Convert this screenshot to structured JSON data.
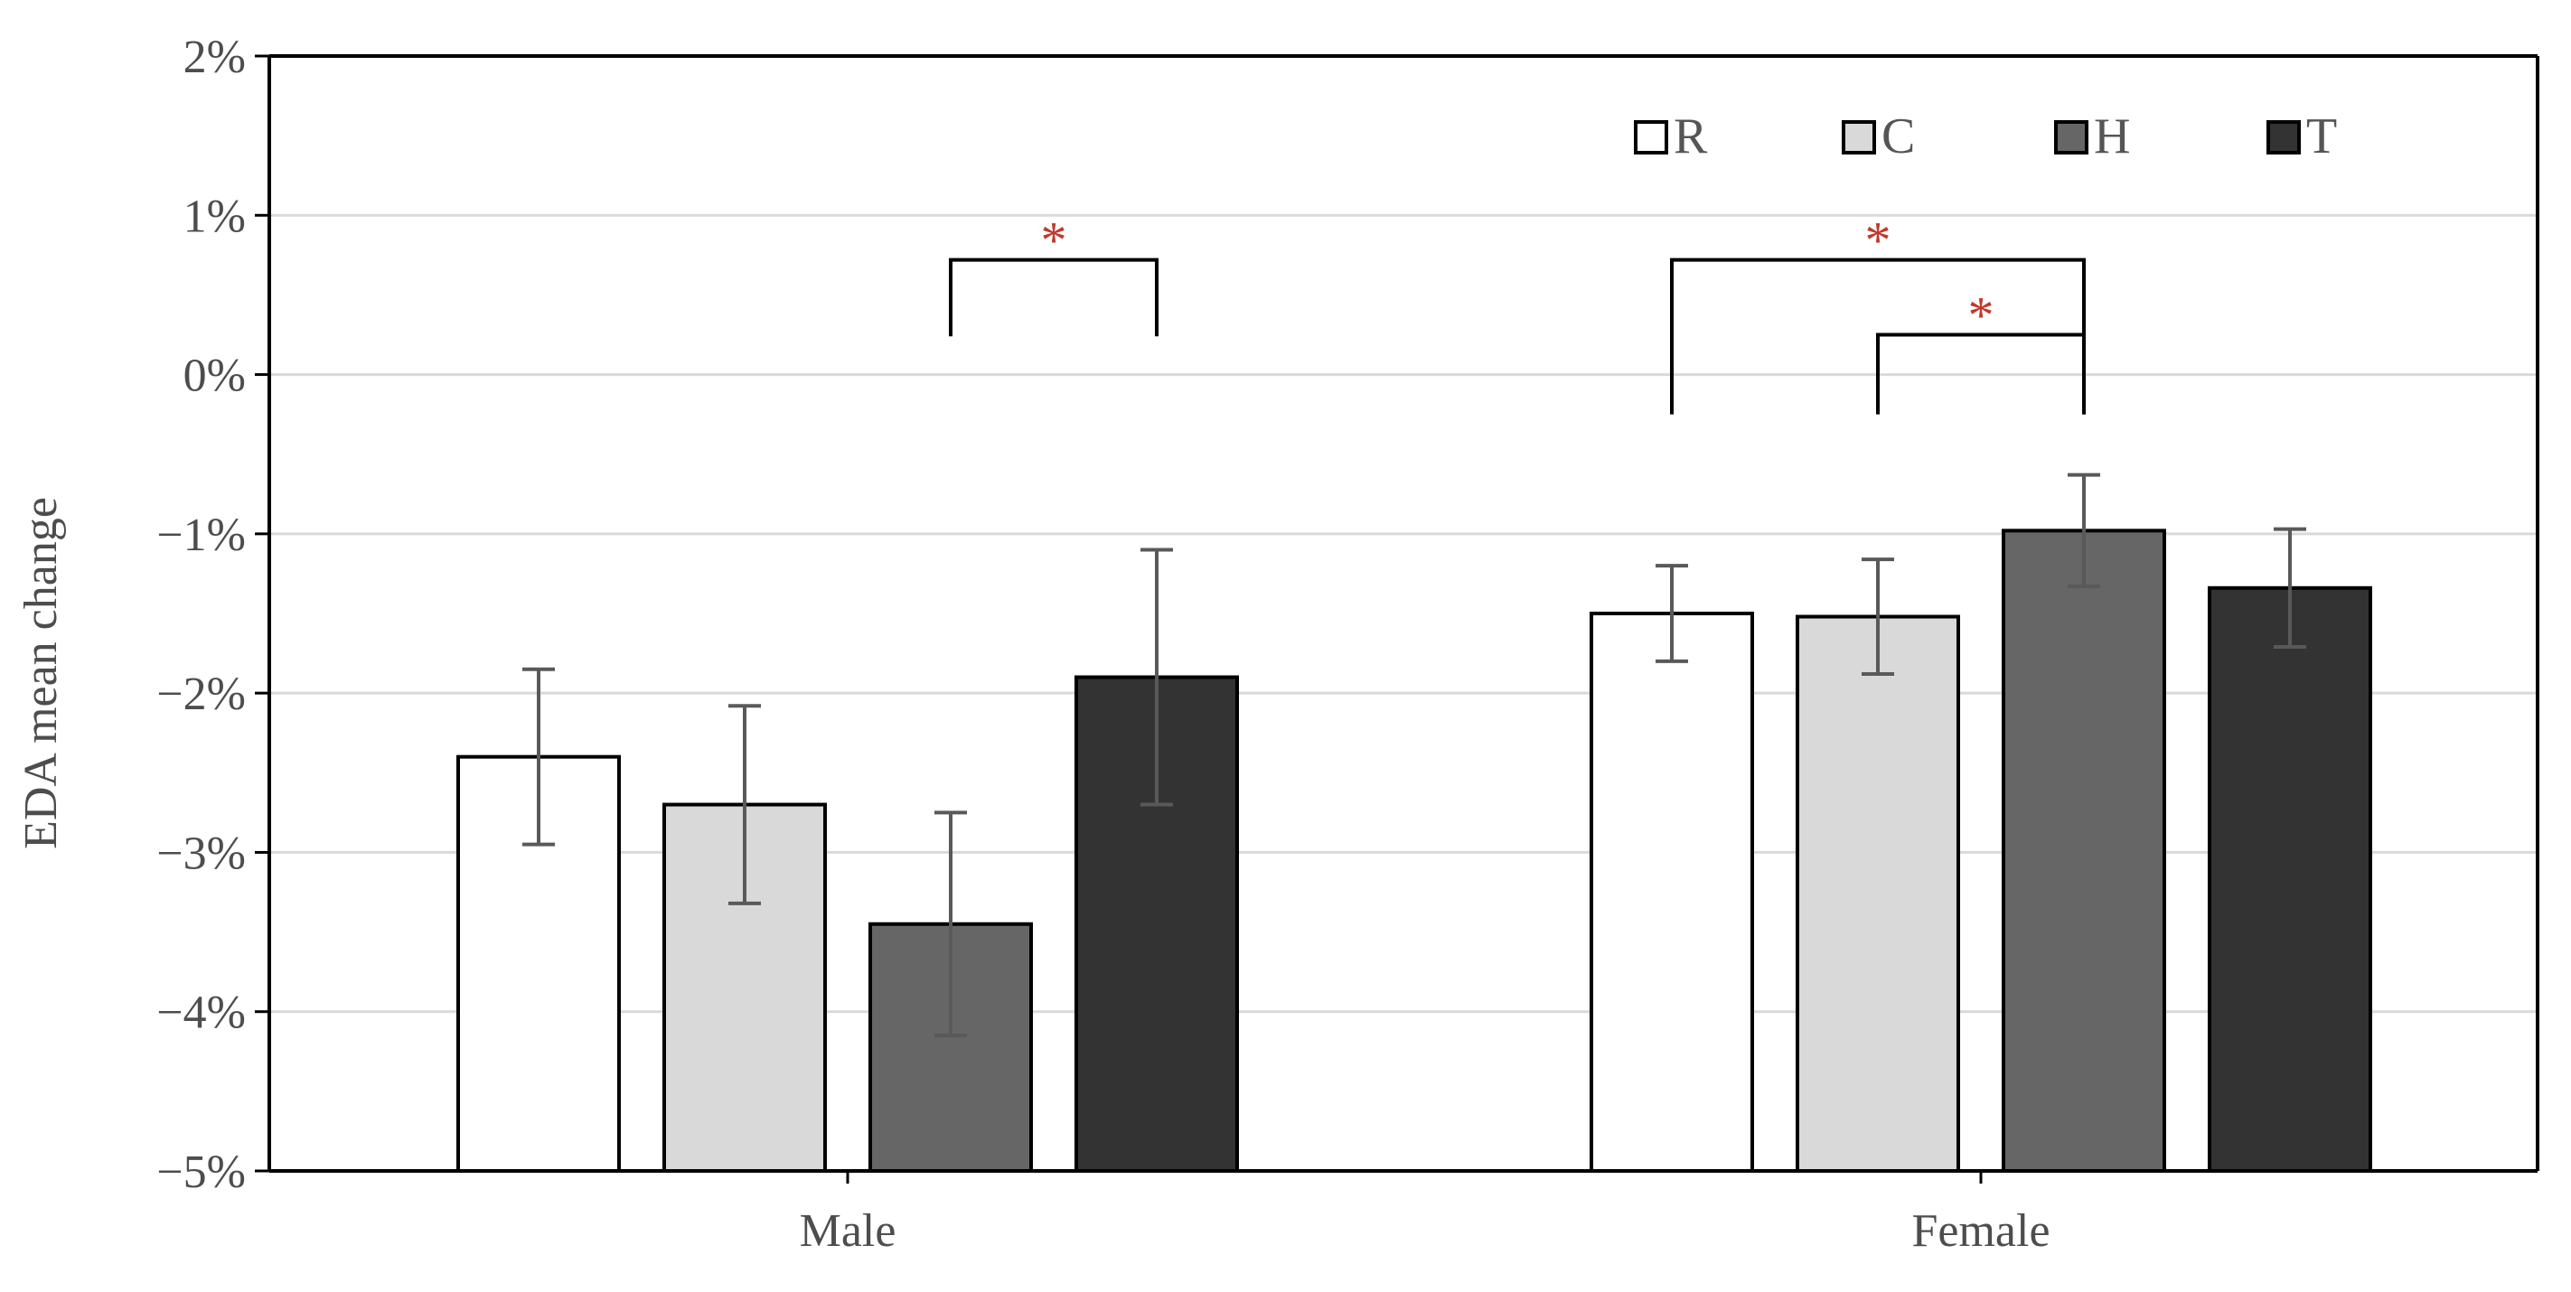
{
  "chart_data": {
    "type": "bar",
    "title": "",
    "xlabel": "",
    "ylabel": "EDA mean change",
    "ylim": [
      -5,
      2
    ],
    "yticks": [
      2,
      1,
      0,
      -1,
      -2,
      -3,
      -4,
      -5
    ],
    "ytick_labels": [
      "2%",
      "1%",
      "0%",
      "−1%",
      "−2%",
      "−3%",
      "−4%",
      "−5%"
    ],
    "grid": true,
    "legend_position": "top-right",
    "categories": [
      "Male",
      "Female"
    ],
    "series": [
      {
        "name": "R",
        "color": "#ffffff",
        "values": [
          -2.4,
          -1.5
        ],
        "errors": [
          0.55,
          0.3
        ]
      },
      {
        "name": "C",
        "color": "#d9d9d9",
        "values": [
          -2.7,
          -1.52
        ],
        "errors": [
          0.62,
          0.36
        ]
      },
      {
        "name": "H",
        "color": "#666666",
        "values": [
          -3.45,
          -0.98
        ],
        "errors": [
          0.7,
          0.35
        ]
      },
      {
        "name": "T",
        "color": "#333333",
        "values": [
          -1.9,
          -1.34
        ],
        "errors": [
          0.8,
          0.37
        ]
      }
    ],
    "significance": [
      {
        "category": "Male",
        "from_series": "H",
        "to_series": "T",
        "label": "*",
        "bracket_y": 0.72,
        "drop_to": 0.24
      },
      {
        "category": "Female",
        "from_series": "R",
        "to_series": "H",
        "label": "*",
        "bracket_y": 0.72,
        "drop_to": -0.25
      },
      {
        "category": "Female",
        "from_series": "C",
        "to_series": "H",
        "label": "*",
        "bracket_y": 0.25,
        "drop_to": -0.25
      }
    ]
  },
  "colors": {
    "axis": "#000000",
    "grid": "#d9d9d9",
    "errorbar": "#595959",
    "significance": "#c0392b"
  }
}
